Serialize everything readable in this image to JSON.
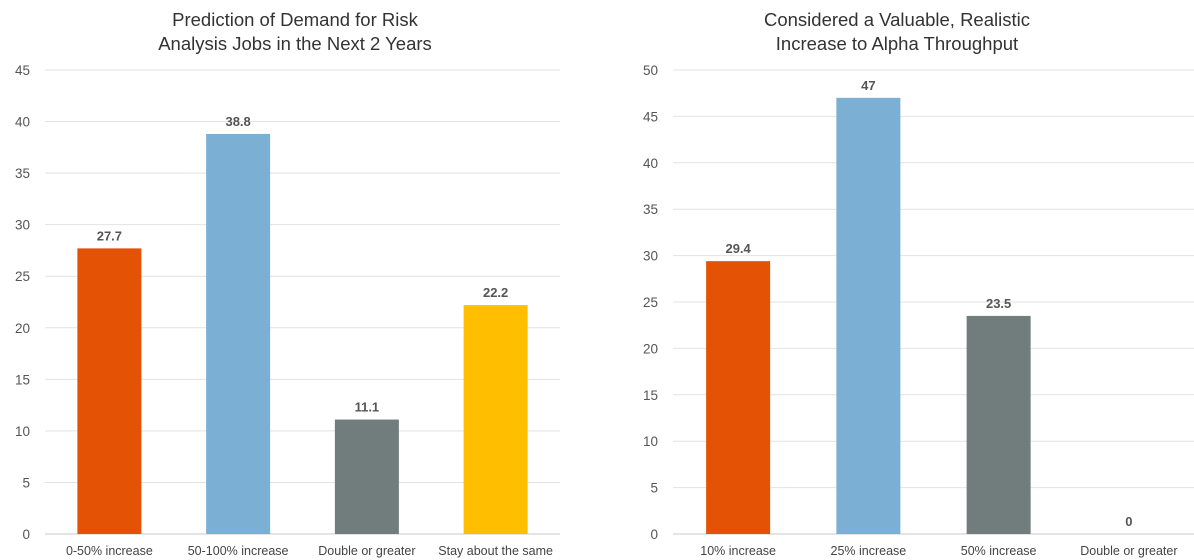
{
  "chart_data": [
    {
      "type": "bar",
      "title_lines": [
        "Prediction of Demand for Risk",
        "Analysis Jobs in the Next 2 Years"
      ],
      "categories": [
        "0-50% increase",
        "50-100% increase",
        "Double or greater",
        "Stay about the same"
      ],
      "values": [
        27.7,
        38.8,
        11.1,
        22.2
      ],
      "data_labels": [
        "27.7",
        "38.8",
        "11.1",
        "22.2"
      ],
      "colors": [
        "#e35205",
        "#7bafd4",
        "#717c7d",
        "#ffbf00"
      ],
      "yticks": [
        0,
        5,
        10,
        15,
        20,
        25,
        30,
        35,
        40,
        45
      ],
      "ylim": [
        0,
        45
      ],
      "grid": true,
      "legend": "none"
    },
    {
      "type": "bar",
      "title_lines": [
        "Considered a Valuable, Realistic",
        "Increase to Alpha Throughput"
      ],
      "categories": [
        "10% increase",
        "25% increase",
        "50% increase",
        "Double or greater"
      ],
      "values": [
        29.4,
        47,
        23.5,
        0
      ],
      "data_labels": [
        "29.4",
        "47",
        "23.5",
        "0"
      ],
      "colors": [
        "#e35205",
        "#7bafd4",
        "#717c7d",
        "#ffbf00"
      ],
      "yticks": [
        0,
        5,
        10,
        15,
        20,
        25,
        30,
        35,
        40,
        45,
        50
      ],
      "ylim": [
        0,
        50
      ],
      "grid": true,
      "legend": "none"
    }
  ]
}
